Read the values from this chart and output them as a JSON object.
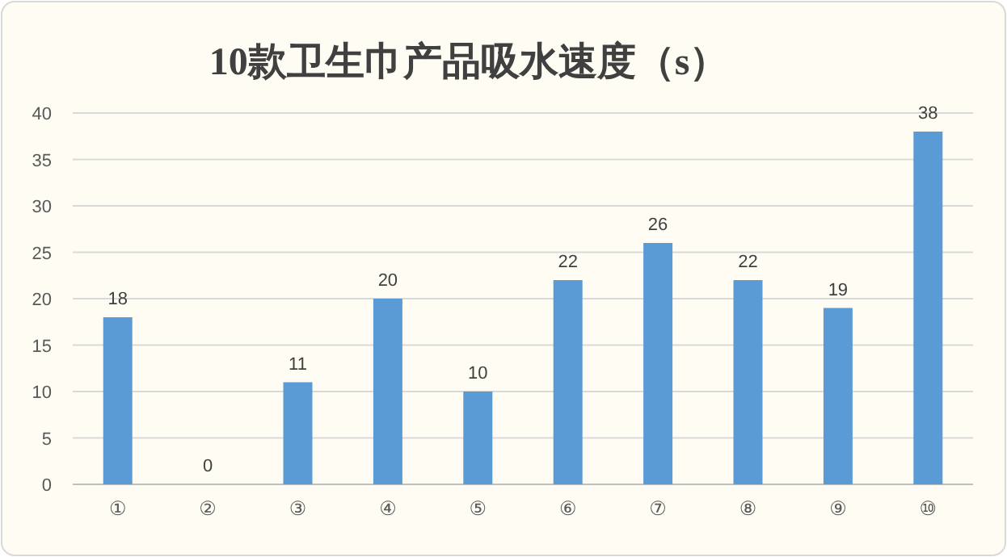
{
  "chart_data": {
    "type": "bar",
    "title": "10款卫生巾产品吸水速度（s）",
    "categories": [
      "①",
      "②",
      "③",
      "④",
      "⑤",
      "⑥",
      "⑦",
      "⑧",
      "⑨",
      "⑩"
    ],
    "values": [
      18,
      0,
      11,
      20,
      10,
      22,
      26,
      22,
      19,
      38
    ],
    "color": "#5b9bd5",
    "ylim": [
      0,
      40
    ],
    "yticks": [
      0,
      5,
      10,
      15,
      20,
      25,
      30,
      35,
      40
    ],
    "grid": "y",
    "data_labels": true
  }
}
